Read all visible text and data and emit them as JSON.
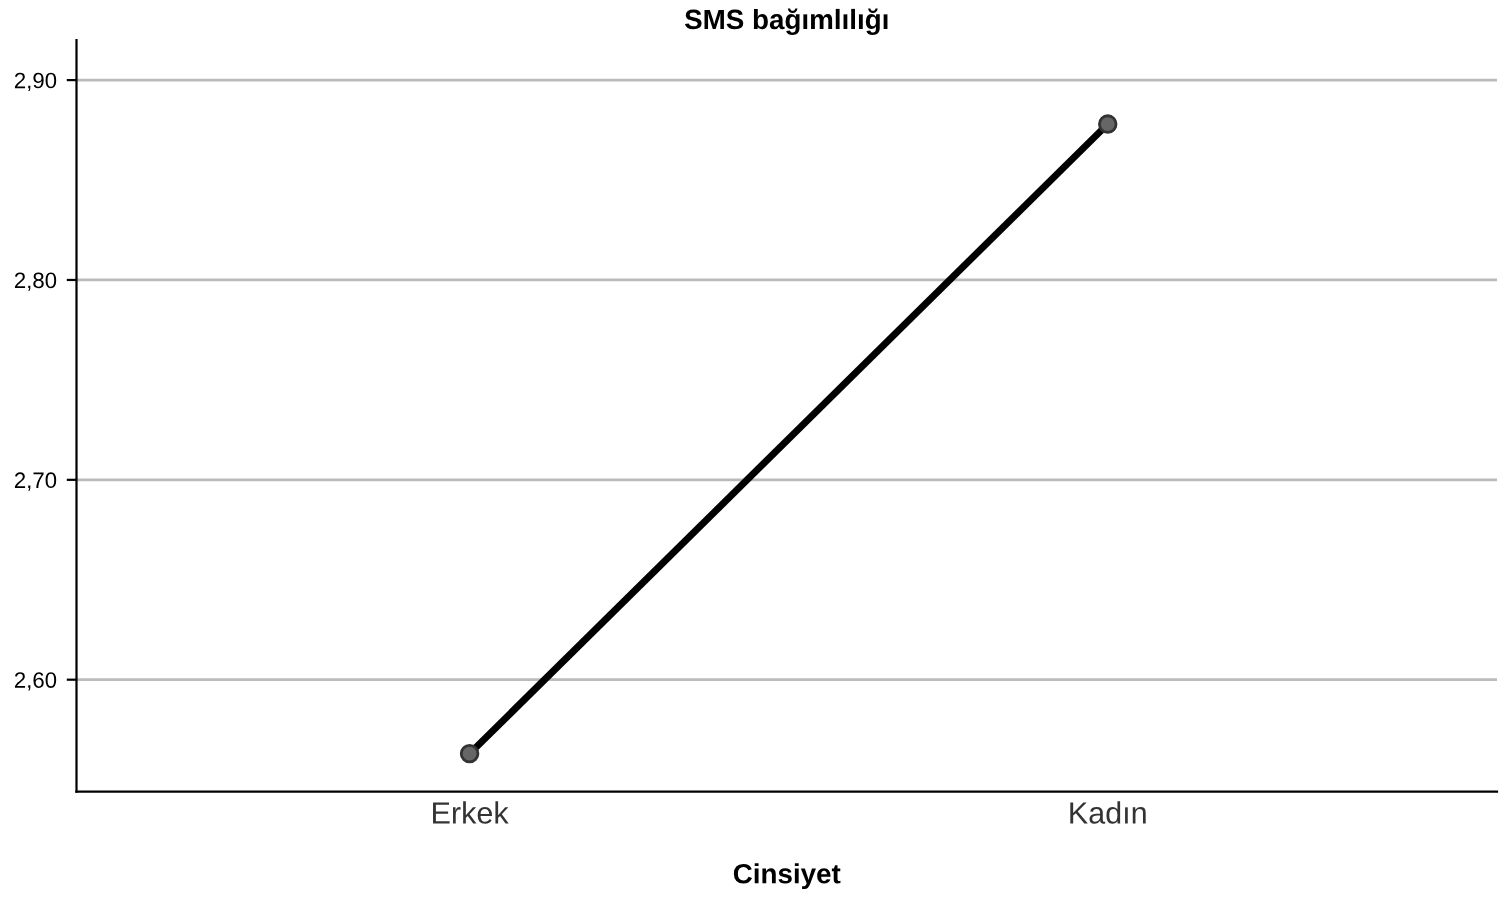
{
  "chart_data": {
    "type": "line",
    "title": "SMS bağımlılığı",
    "xlabel": "Cinsiyet",
    "categories": [
      "Erkek",
      "Kadın"
    ],
    "series": [
      {
        "color": "#000000",
        "values": [
          2.563,
          2.878
        ]
      }
    ],
    "ylim": [
      2.544,
      2.92
    ],
    "yticks": [
      {
        "value": 2.6,
        "label": "2,60"
      },
      {
        "value": 2.7,
        "label": "2,70"
      },
      {
        "value": 2.8,
        "label": "2,80"
      },
      {
        "value": 2.9,
        "label": "2,90"
      }
    ],
    "grid": "y",
    "marker": "circle",
    "line_style": "solid",
    "legend": false
  }
}
